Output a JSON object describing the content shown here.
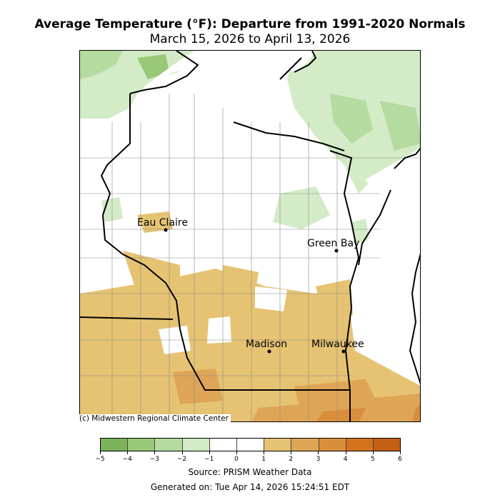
{
  "title": "Average Temperature (°F): Departure from 1991-2020 Normals",
  "subtitle": "March 15, 2026 to April 13, 2026",
  "copyright": "(c) Midwestern Regional Climate Center",
  "source": "Source: PRISM Weather Data",
  "generated": "Generated on: Tue Apr 14, 2026 15:24:51 EDT",
  "cities": [
    {
      "name": "Eau Claire"
    },
    {
      "name": "Green Bay"
    },
    {
      "name": "Madison"
    },
    {
      "name": "Milwaukee"
    }
  ],
  "legend": {
    "ticks": [
      "−5",
      "−4",
      "−3",
      "−2",
      "−1",
      "0",
      "1",
      "2",
      "3",
      "4",
      "5",
      "6"
    ],
    "colors": [
      "#7ab35a",
      "#98c878",
      "#b5dba0",
      "#d3ebc6",
      "#ffffff",
      "#ffffff",
      "#e5c372",
      "#dea556",
      "#d98e3c",
      "#d3741c",
      "#c55f13"
    ]
  }
}
